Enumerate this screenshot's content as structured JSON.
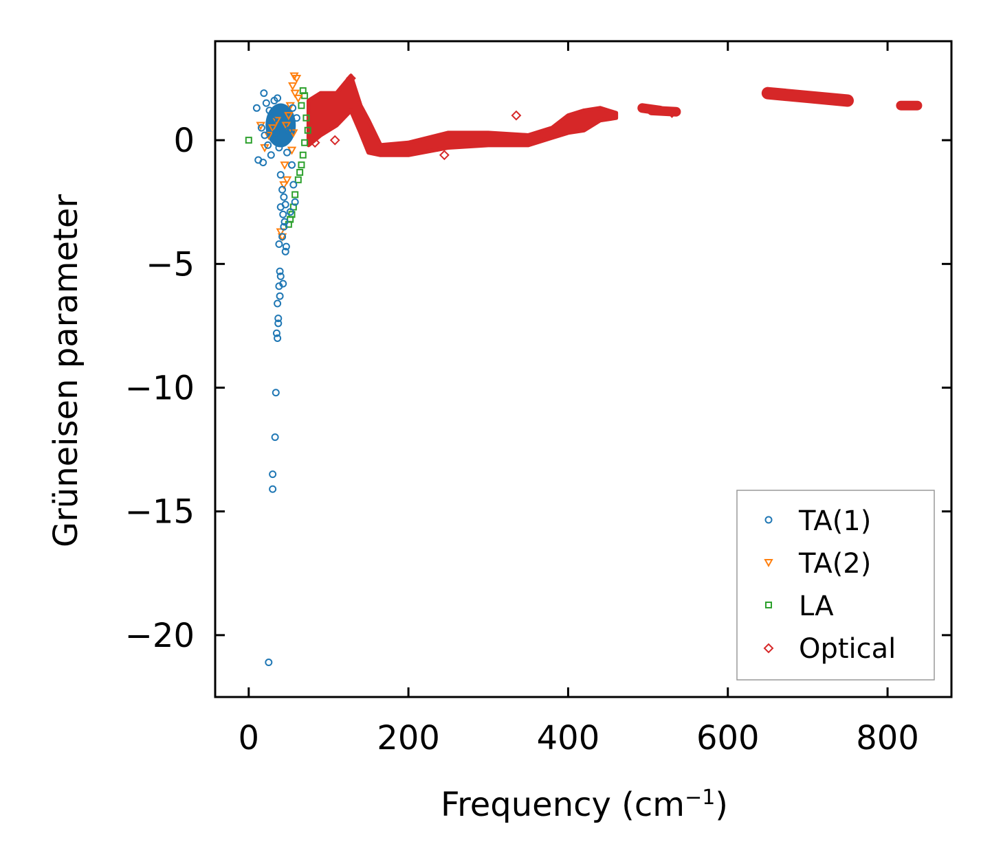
{
  "chart_data": {
    "type": "scatter",
    "title": "",
    "xlabel": "Frequency (cm",
    "xlabel_sup": "−1",
    "xlabel_close": ")",
    "ylabel": "Grüneisen parameter",
    "xlim": [
      -42,
      880
    ],
    "ylim": [
      -22.5,
      4.0
    ],
    "xticks": [
      0,
      200,
      400,
      600,
      800
    ],
    "xtick_labels": [
      "0",
      "200",
      "400",
      "600",
      "800"
    ],
    "yticks": [
      0,
      -5,
      -10,
      -15,
      -20
    ],
    "ytick_labels": [
      "0",
      "−5",
      "−10",
      "−15",
      "−20"
    ],
    "legend_position": "lower-right",
    "series": [
      {
        "name": "TA(1)",
        "color": "#1f77b4",
        "marker": "circle",
        "points": [
          [
            19,
            1.9
          ],
          [
            22,
            1.5
          ],
          [
            26,
            1.2
          ],
          [
            10,
            1.3
          ],
          [
            16,
            0.5
          ],
          [
            20,
            0.2
          ],
          [
            24,
            -0.2
          ],
          [
            28,
            -0.6
          ],
          [
            12,
            -0.8
          ],
          [
            18,
            -0.9
          ],
          [
            30,
            0.8
          ],
          [
            32,
            1.6
          ],
          [
            36,
            1.7
          ],
          [
            34,
            0.3
          ],
          [
            38,
            -0.3
          ],
          [
            40,
            -1.4
          ],
          [
            42,
            -2.0
          ],
          [
            44,
            -2.3
          ],
          [
            46,
            -2.6
          ],
          [
            40,
            -2.7
          ],
          [
            43,
            -3.0
          ],
          [
            45,
            -3.3
          ],
          [
            44,
            -3.5
          ],
          [
            42,
            -3.9
          ],
          [
            38,
            -4.2
          ],
          [
            47,
            -4.3
          ],
          [
            46,
            -4.5
          ],
          [
            39,
            -5.3
          ],
          [
            40,
            -5.5
          ],
          [
            43,
            -5.8
          ],
          [
            38,
            -5.9
          ],
          [
            39,
            -6.3
          ],
          [
            36,
            -6.6
          ],
          [
            37,
            -7.2
          ],
          [
            37,
            -7.4
          ],
          [
            35,
            -7.8
          ],
          [
            36,
            -8.0
          ],
          [
            34,
            -10.2
          ],
          [
            33,
            -12.0
          ],
          [
            30,
            -13.5
          ],
          [
            30,
            -14.1
          ],
          [
            25,
            -21.1
          ],
          [
            50,
            0.4
          ],
          [
            54,
            -1.0
          ],
          [
            56,
            -1.8
          ],
          [
            58,
            -2.5
          ],
          [
            52,
            -2.9
          ],
          [
            48,
            -0.5
          ],
          [
            60,
            0.9
          ],
          [
            55,
            1.3
          ]
        ]
      },
      {
        "name": "TA(2)",
        "color": "#ff7f0e",
        "marker": "triangle-down",
        "points": [
          [
            57,
            2.6
          ],
          [
            60,
            2.5
          ],
          [
            55,
            2.2
          ],
          [
            58,
            1.9
          ],
          [
            62,
            1.7
          ],
          [
            52,
            1.4
          ],
          [
            50,
            1.0
          ],
          [
            47,
            0.6
          ],
          [
            45,
            -1.0
          ],
          [
            48,
            -1.6
          ],
          [
            44,
            -1.8
          ],
          [
            42,
            -3.9
          ],
          [
            40,
            -3.7
          ],
          [
            35,
            0.8
          ],
          [
            30,
            0.5
          ],
          [
            25,
            0.2
          ],
          [
            15,
            0.6
          ],
          [
            20,
            -0.3
          ],
          [
            56,
            0.3
          ],
          [
            54,
            -0.4
          ]
        ]
      },
      {
        "name": "LA",
        "color": "#2ca02c",
        "marker": "square",
        "points": [
          [
            0,
            0.0
          ],
          [
            70,
            1.8
          ],
          [
            68,
            2.0
          ],
          [
            66,
            1.4
          ],
          [
            72,
            0.9
          ],
          [
            74,
            0.4
          ],
          [
            70,
            -0.1
          ],
          [
            68,
            -0.6
          ],
          [
            66,
            -1.0
          ],
          [
            64,
            -1.3
          ],
          [
            62,
            -1.6
          ],
          [
            58,
            -2.2
          ],
          [
            56,
            -2.7
          ],
          [
            54,
            -3.0
          ],
          [
            52,
            -3.2
          ],
          [
            50,
            -3.4
          ]
        ]
      },
      {
        "name": "Optical",
        "color": "#d62728",
        "marker": "diamond",
        "points": [
          [
            108,
            0.0
          ],
          [
            83,
            -0.1
          ],
          [
            128,
            2.5
          ],
          [
            335,
            1.0
          ],
          [
            530,
            1.1
          ],
          [
            245,
            -0.6
          ]
        ],
        "bands": [
          [
            [
              75,
              1.6
            ],
            [
              90,
              1.9
            ],
            [
              110,
              1.9
            ],
            [
              128,
              2.6
            ],
            [
              140,
              1.4
            ],
            [
              150,
              0.8
            ],
            [
              165,
              -0.2
            ],
            [
              200,
              -0.1
            ],
            [
              250,
              0.3
            ],
            [
              300,
              0.3
            ],
            [
              350,
              0.2
            ],
            [
              380,
              0.5
            ],
            [
              400,
              1.0
            ],
            [
              420,
              1.2
            ],
            [
              440,
              1.3
            ],
            [
              460,
              1.1
            ]
          ],
          [
            [
              75,
              -0.2
            ],
            [
              90,
              0.2
            ],
            [
              110,
              0.6
            ],
            [
              128,
              1.2
            ],
            [
              140,
              0.3
            ],
            [
              150,
              -0.5
            ],
            [
              165,
              -0.6
            ],
            [
              200,
              -0.6
            ],
            [
              250,
              -0.3
            ],
            [
              300,
              -0.2
            ],
            [
              350,
              -0.2
            ],
            [
              380,
              0.1
            ],
            [
              400,
              0.3
            ],
            [
              420,
              0.4
            ],
            [
              440,
              0.8
            ],
            [
              460,
              0.9
            ]
          ]
        ],
        "clusters": [
          [
            498,
            1.3
          ],
          [
            510,
            1.2
          ],
          [
            530,
            1.15
          ],
          [
            650,
            1.9
          ],
          [
            700,
            1.75
          ],
          [
            750,
            1.6
          ],
          [
            827,
            1.4
          ]
        ]
      }
    ]
  }
}
